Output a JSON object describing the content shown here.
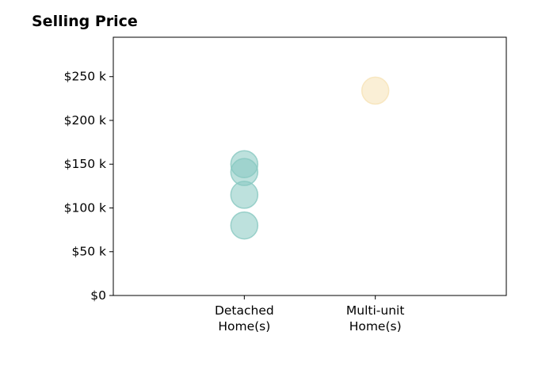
{
  "chart_data": {
    "type": "scatter",
    "title": "Selling Price",
    "xlabel": "",
    "ylabel": "",
    "categories": [
      "Detached\nHome(s)",
      "Multi-unit\nHome(s)"
    ],
    "x_range": [
      -1,
      2
    ],
    "ylim": [
      0,
      295000
    ],
    "y_ticks": [
      0,
      50000,
      100000,
      150000,
      200000,
      250000
    ],
    "y_tick_labels": [
      "$0",
      "$50 k",
      "$100 k",
      "$150 k",
      "$200 k",
      "$250 k"
    ],
    "grid": false,
    "legend": "none",
    "series": [
      {
        "category": "Detached\nHome(s)",
        "color": "#87c8c1",
        "values": [
          80000,
          115000,
          141000,
          150000
        ]
      },
      {
        "category": "Multi-unit\nHome(s)",
        "color": "#f6e2b5",
        "values": [
          234000
        ]
      }
    ]
  }
}
